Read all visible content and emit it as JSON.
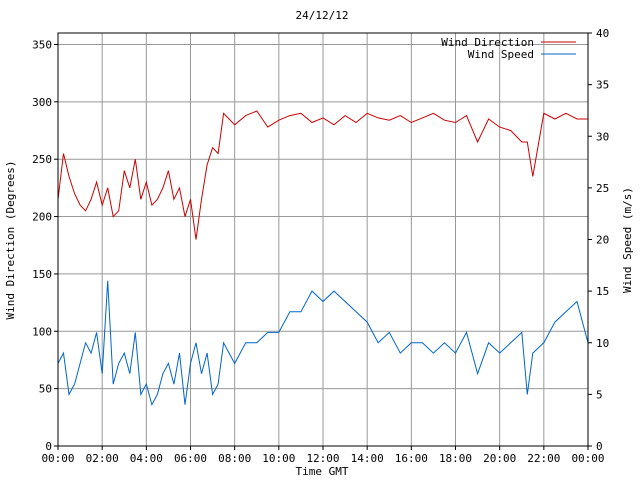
{
  "chart_data": {
    "type": "line",
    "title": "24/12/12",
    "xlabel": "Time GMT",
    "ylabel_left": "Wind Direction (Degrees)",
    "ylabel_right": "Wind Speed (m/s)",
    "x_ticks": [
      "00:00",
      "02:00",
      "04:00",
      "06:00",
      "08:00",
      "10:00",
      "12:00",
      "14:00",
      "16:00",
      "18:00",
      "20:00",
      "22:00",
      "00:00"
    ],
    "y_left_ticks": [
      0,
      50,
      100,
      150,
      200,
      250,
      300,
      350
    ],
    "y_right_ticks": [
      0,
      5,
      10,
      15,
      20,
      25,
      30,
      35,
      40
    ],
    "y_left_range": [
      0,
      360
    ],
    "y_right_range": [
      0,
      40
    ],
    "x_range_hours": [
      0,
      24
    ],
    "grid": true,
    "legend_position": "top-right",
    "series": [
      {
        "name": "Wind Direction",
        "axis": "left",
        "color": "#cc0000",
        "x": [
          0,
          0.25,
          0.5,
          0.75,
          1,
          1.25,
          1.5,
          1.75,
          2,
          2.25,
          2.5,
          2.75,
          3,
          3.25,
          3.5,
          3.75,
          4,
          4.25,
          4.5,
          4.75,
          5,
          5.25,
          5.5,
          5.75,
          6,
          6.25,
          6.5,
          6.75,
          7,
          7.25,
          7.5,
          7.75,
          8,
          8.5,
          9,
          9.5,
          10,
          10.5,
          11,
          11.5,
          12,
          12.5,
          13,
          13.5,
          14,
          14.5,
          15,
          15.5,
          16,
          16.5,
          17,
          17.5,
          18,
          18.5,
          19,
          19.5,
          20,
          20.5,
          21,
          21.25,
          21.5,
          22,
          22.5,
          23,
          23.5,
          24
        ],
        "y": [
          215,
          255,
          235,
          220,
          210,
          205,
          215,
          230,
          210,
          225,
          200,
          205,
          240,
          225,
          250,
          215,
          230,
          210,
          215,
          225,
          240,
          215,
          225,
          200,
          215,
          180,
          215,
          245,
          260,
          255,
          290,
          285,
          280,
          288,
          292,
          278,
          284,
          288,
          290,
          282,
          286,
          280,
          288,
          282,
          290,
          286,
          284,
          288,
          282,
          286,
          290,
          284,
          282,
          288,
          265,
          285,
          278,
          275,
          265,
          265,
          235,
          290,
          285,
          290,
          285,
          285
        ]
      },
      {
        "name": "Wind Speed",
        "axis": "right",
        "color": "#0066cc",
        "x": [
          0,
          0.25,
          0.5,
          0.75,
          1,
          1.25,
          1.5,
          1.75,
          2,
          2.25,
          2.5,
          2.75,
          3,
          3.25,
          3.5,
          3.75,
          4,
          4.25,
          4.5,
          4.75,
          5,
          5.25,
          5.5,
          5.75,
          6,
          6.25,
          6.5,
          6.75,
          7,
          7.25,
          7.5,
          7.75,
          8,
          8.5,
          9,
          9.5,
          10,
          10.5,
          11,
          11.5,
          12,
          12.5,
          13,
          13.5,
          14,
          14.5,
          15,
          15.5,
          16,
          16.5,
          17,
          17.5,
          18,
          18.5,
          19,
          19.5,
          20,
          20.5,
          21,
          21.25,
          21.5,
          22,
          22.5,
          23,
          23.5,
          24
        ],
        "y": [
          8,
          9,
          5,
          6,
          8,
          10,
          9,
          11,
          7,
          16,
          6,
          8,
          9,
          7,
          11,
          5,
          6,
          4,
          5,
          7,
          8,
          6,
          9,
          4,
          8,
          10,
          7,
          9,
          5,
          6,
          10,
          9,
          8,
          10,
          10,
          11,
          11,
          13,
          13,
          15,
          14,
          15,
          14,
          13,
          12,
          10,
          11,
          9,
          10,
          10,
          9,
          10,
          9,
          11,
          7,
          10,
          9,
          10,
          11,
          5,
          9,
          10,
          12,
          13,
          14,
          10
        ]
      }
    ]
  }
}
